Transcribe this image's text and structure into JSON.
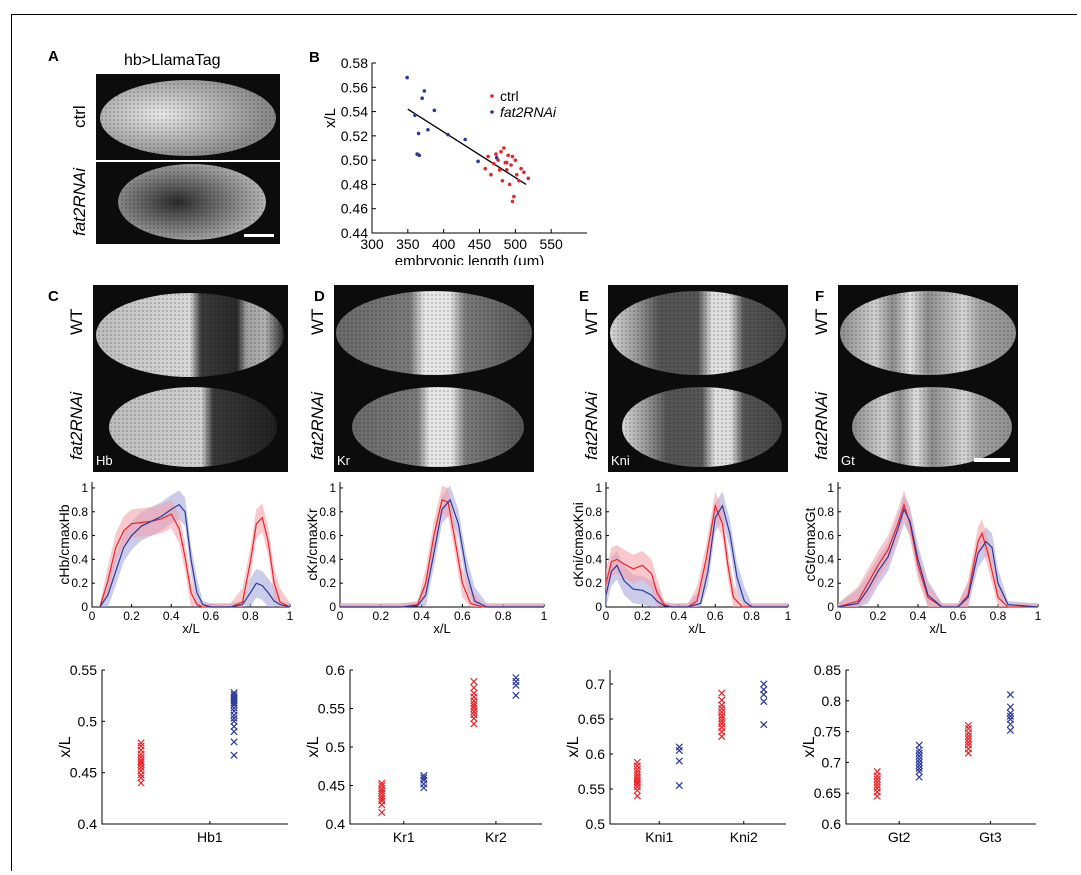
{
  "panel_letters": [
    "A",
    "B",
    "C",
    "D",
    "E",
    "F"
  ],
  "panelA": {
    "title": "hb>LlamaTag",
    "row_labels": [
      "ctrl",
      "fat2RNAi"
    ]
  },
  "image_labels": {
    "genotypes": [
      "WT",
      "fat2RNAi"
    ],
    "genes": [
      "Hb",
      "Kr",
      "Kni",
      "Gt"
    ]
  },
  "colors": {
    "ctrl": "#e8242a",
    "fat2RNAi": "#2b3a9a",
    "ctrl_band": "#f4a4ab",
    "fat2_band": "#a8a8dc"
  },
  "chart_data": [
    {
      "panel": "B",
      "type": "scatter",
      "xlabel": "embryonic length (μm)",
      "ylabel": "x/L",
      "xlim": [
        300,
        600
      ],
      "ylim": [
        0.44,
        0.58
      ],
      "xticks": [
        "300",
        "350",
        "400",
        "450",
        "500",
        "550"
      ],
      "yticks": [
        "0.44",
        "0.46",
        "0.48",
        "0.50",
        "0.52",
        "0.54",
        "0.56",
        "0.58"
      ],
      "legend": [
        "ctrl",
        "fat2RNAi"
      ],
      "legend_position": "top-right",
      "series": [
        {
          "name": "ctrl",
          "points": [
            [
              458,
              0.493
            ],
            [
              462,
              0.503
            ],
            [
              466,
              0.488
            ],
            [
              470,
              0.497
            ],
            [
              473,
              0.505
            ],
            [
              476,
              0.5
            ],
            [
              478,
              0.492
            ],
            [
              480,
              0.507
            ],
            [
              482,
              0.483
            ],
            [
              484,
              0.51
            ],
            [
              486,
              0.498
            ],
            [
              488,
              0.492
            ],
            [
              490,
              0.504
            ],
            [
              492,
              0.48
            ],
            [
              494,
              0.496
            ],
            [
              496,
              0.503
            ],
            [
              498,
              0.47
            ],
            [
              500,
              0.5
            ],
            [
              502,
              0.488
            ],
            [
              505,
              0.483
            ],
            [
              508,
              0.493
            ],
            [
              512,
              0.49
            ],
            [
              518,
              0.485
            ],
            [
              488,
              0.498
            ],
            [
              496,
              0.466
            ]
          ]
        },
        {
          "name": "fat2RNAi",
          "points": [
            [
              349,
              0.568
            ],
            [
              360,
              0.537
            ],
            [
              363,
              0.505
            ],
            [
              365,
              0.522
            ],
            [
              366,
              0.504
            ],
            [
              370,
              0.551
            ],
            [
              373,
              0.557
            ],
            [
              378,
              0.525
            ],
            [
              387,
              0.541
            ],
            [
              406,
              0.521
            ],
            [
              430,
              0.517
            ],
            [
              448,
              0.499
            ],
            [
              474,
              0.502
            ]
          ]
        }
      ],
      "fit_line": [
        [
          350,
          0.542
        ],
        [
          515,
          0.48
        ]
      ]
    },
    {
      "panel": "C",
      "type": "line",
      "xlabel": "x/L",
      "ylabel": "cHb/cmaxHb",
      "xlim": [
        0,
        1
      ],
      "ylim": [
        0,
        1.05
      ],
      "xticks": [
        "0",
        "0.2",
        "0.4",
        "0.6",
        "0.8",
        "1"
      ],
      "yticks": [
        "0",
        "0.2",
        "0.4",
        "0.6",
        "0.8",
        "1"
      ],
      "series": [
        {
          "name": "ctrl",
          "x": [
            0.04,
            0.08,
            0.12,
            0.16,
            0.2,
            0.25,
            0.3,
            0.35,
            0.4,
            0.44,
            0.47,
            0.5,
            0.53,
            0.56,
            0.6,
            0.7,
            0.76,
            0.8,
            0.83,
            0.86,
            0.89,
            0.92,
            0.95,
            1.0
          ],
          "y": [
            0,
            0.22,
            0.5,
            0.64,
            0.7,
            0.71,
            0.72,
            0.74,
            0.78,
            0.66,
            0.42,
            0.12,
            0.02,
            0,
            0,
            0,
            0.04,
            0.38,
            0.7,
            0.75,
            0.55,
            0.2,
            0.04,
            0
          ]
        },
        {
          "name": "fat2RNAi",
          "x": [
            0.04,
            0.08,
            0.12,
            0.16,
            0.2,
            0.25,
            0.3,
            0.35,
            0.4,
            0.44,
            0.47,
            0.5,
            0.53,
            0.56,
            0.6,
            0.7,
            0.76,
            0.8,
            0.83,
            0.86,
            0.89,
            0.92,
            0.95,
            1.0
          ],
          "y": [
            0,
            0.1,
            0.3,
            0.5,
            0.6,
            0.68,
            0.72,
            0.76,
            0.82,
            0.86,
            0.8,
            0.4,
            0.12,
            0.02,
            0,
            0,
            0.02,
            0.12,
            0.2,
            0.18,
            0.12,
            0.05,
            0.02,
            0
          ]
        }
      ]
    },
    {
      "panel": "D",
      "type": "line",
      "xlabel": "x/L",
      "ylabel": "cKr/cmaxKr",
      "xlim": [
        0,
        1
      ],
      "ylim": [
        0,
        1.05
      ],
      "xticks": [
        "0",
        "0.2",
        "0.4",
        "0.6",
        "0.8",
        "1"
      ],
      "yticks": [
        "0",
        "0.2",
        "0.4",
        "0.6",
        "0.8",
        "1"
      ],
      "series": [
        {
          "name": "ctrl",
          "x": [
            0,
            0.3,
            0.38,
            0.42,
            0.46,
            0.5,
            0.53,
            0.56,
            0.6,
            0.64,
            0.7,
            1.0
          ],
          "y": [
            0,
            0,
            0.02,
            0.2,
            0.6,
            0.9,
            0.88,
            0.6,
            0.2,
            0.03,
            0,
            0
          ]
        },
        {
          "name": "fat2RNAi",
          "x": [
            0,
            0.3,
            0.38,
            0.42,
            0.46,
            0.5,
            0.54,
            0.58,
            0.62,
            0.66,
            0.72,
            1.0
          ],
          "y": [
            0,
            0,
            0.01,
            0.1,
            0.45,
            0.82,
            0.9,
            0.7,
            0.3,
            0.05,
            0,
            0
          ]
        }
      ]
    },
    {
      "panel": "E",
      "type": "line",
      "xlabel": "x/L",
      "ylabel": "cKni/cmaxKni",
      "xlim": [
        0,
        1
      ],
      "ylim": [
        0,
        1.05
      ],
      "xticks": [
        "0",
        "0.2",
        "0.4",
        "0.6",
        "0.8",
        "1"
      ],
      "yticks": [
        "0",
        "0.2",
        "0.4",
        "0.6",
        "0.8",
        "1"
      ],
      "series": [
        {
          "name": "ctrl",
          "x": [
            0,
            0.03,
            0.06,
            0.1,
            0.15,
            0.2,
            0.25,
            0.28,
            0.32,
            0.36,
            0.45,
            0.5,
            0.55,
            0.6,
            0.64,
            0.67,
            0.7,
            0.75,
            0.8,
            1.0
          ],
          "y": [
            0.2,
            0.38,
            0.4,
            0.36,
            0.32,
            0.35,
            0.28,
            0.12,
            0.02,
            0,
            0,
            0.05,
            0.4,
            0.85,
            0.7,
            0.35,
            0.08,
            0,
            0,
            0
          ]
        },
        {
          "name": "fat2RNAi",
          "x": [
            0,
            0.03,
            0.06,
            0.1,
            0.15,
            0.2,
            0.25,
            0.28,
            0.32,
            0.36,
            0.45,
            0.52,
            0.56,
            0.6,
            0.64,
            0.68,
            0.72,
            0.76,
            0.8,
            1.0
          ],
          "y": [
            0.1,
            0.3,
            0.35,
            0.22,
            0.15,
            0.14,
            0.1,
            0.05,
            0.01,
            0,
            0,
            0.03,
            0.3,
            0.75,
            0.85,
            0.62,
            0.25,
            0.05,
            0,
            0
          ]
        }
      ]
    },
    {
      "panel": "F",
      "type": "line",
      "xlabel": "x/L",
      "ylabel": "cGt/cmaxGt",
      "xlim": [
        0,
        1
      ],
      "ylim": [
        0,
        1.05
      ],
      "xticks": [
        "0",
        "0.2",
        "0.4",
        "0.6",
        "0.8",
        "1"
      ],
      "yticks": [
        "0",
        "0.2",
        "0.4",
        "0.6",
        "0.8",
        "1"
      ],
      "series": [
        {
          "name": "ctrl",
          "x": [
            0,
            0.1,
            0.15,
            0.2,
            0.25,
            0.3,
            0.33,
            0.36,
            0.4,
            0.45,
            0.52,
            0.6,
            0.65,
            0.7,
            0.72,
            0.75,
            0.8,
            0.85,
            1.0
          ],
          "y": [
            0,
            0.05,
            0.2,
            0.35,
            0.48,
            0.7,
            0.86,
            0.7,
            0.35,
            0.08,
            0,
            0,
            0.1,
            0.55,
            0.62,
            0.45,
            0.08,
            0,
            0
          ]
        },
        {
          "name": "fat2RNAi",
          "x": [
            0,
            0.1,
            0.15,
            0.2,
            0.25,
            0.3,
            0.33,
            0.36,
            0.4,
            0.45,
            0.52,
            0.6,
            0.65,
            0.7,
            0.74,
            0.77,
            0.8,
            0.85,
            1.0
          ],
          "y": [
            0,
            0.03,
            0.15,
            0.3,
            0.42,
            0.66,
            0.82,
            0.72,
            0.4,
            0.1,
            0,
            0,
            0.08,
            0.45,
            0.55,
            0.5,
            0.2,
            0.02,
            0
          ]
        }
      ]
    },
    {
      "panel": "C",
      "type": "scatter",
      "ylabel": "x/L",
      "ylim": [
        0.4,
        0.55
      ],
      "yticks": [
        "0.4",
        "0.45",
        "0.5",
        "0.55"
      ],
      "categories": [
        "Hb1"
      ],
      "series": [
        {
          "name": "ctrl",
          "category": "Hb1",
          "values": [
            0.44,
            0.445,
            0.448,
            0.452,
            0.455,
            0.458,
            0.46,
            0.462,
            0.465,
            0.468,
            0.472,
            0.476,
            0.479
          ]
        },
        {
          "name": "fat2RNAi",
          "category": "Hb1",
          "values": [
            0.467,
            0.48,
            0.49,
            0.495,
            0.5,
            0.503,
            0.506,
            0.51,
            0.513,
            0.516,
            0.518,
            0.52,
            0.522,
            0.524,
            0.526,
            0.528
          ]
        }
      ]
    },
    {
      "panel": "D",
      "type": "scatter",
      "ylabel": "x/L",
      "ylim": [
        0.4,
        0.6
      ],
      "yticks": [
        "0.4",
        "0.45",
        "0.5",
        "0.55",
        "0.6"
      ],
      "categories": [
        "Kr1",
        "Kr2"
      ],
      "series": [
        {
          "name": "ctrl",
          "category": "Kr1",
          "values": [
            0.415,
            0.425,
            0.43,
            0.433,
            0.436,
            0.44,
            0.443,
            0.446,
            0.45,
            0.453
          ]
        },
        {
          "name": "fat2RNAi",
          "category": "Kr1",
          "values": [
            0.447,
            0.452,
            0.457,
            0.46,
            0.463
          ]
        },
        {
          "name": "ctrl",
          "category": "Kr2",
          "values": [
            0.53,
            0.537,
            0.542,
            0.546,
            0.55,
            0.553,
            0.556,
            0.56,
            0.565,
            0.57,
            0.577,
            0.585
          ]
        },
        {
          "name": "fat2RNAi",
          "category": "Kr2",
          "values": [
            0.567,
            0.58,
            0.585,
            0.59
          ]
        }
      ]
    },
    {
      "panel": "E",
      "type": "scatter",
      "ylabel": "x/L",
      "ylim": [
        0.5,
        0.72
      ],
      "yticks": [
        "0.5",
        "0.55",
        "0.6",
        "0.65",
        "0.7"
      ],
      "categories": [
        "Kni1",
        "Kni2"
      ],
      "series": [
        {
          "name": "ctrl",
          "category": "Kni1",
          "values": [
            0.54,
            0.548,
            0.553,
            0.557,
            0.56,
            0.563,
            0.566,
            0.57,
            0.574,
            0.578,
            0.583,
            0.588
          ]
        },
        {
          "name": "fat2RNAi",
          "category": "Kni1",
          "values": [
            0.555,
            0.59,
            0.605,
            0.61
          ]
        },
        {
          "name": "ctrl",
          "category": "Kni2",
          "values": [
            0.625,
            0.632,
            0.638,
            0.643,
            0.647,
            0.651,
            0.655,
            0.66,
            0.665,
            0.67,
            0.677,
            0.687
          ]
        },
        {
          "name": "fat2RNAi",
          "category": "Kni2",
          "values": [
            0.642,
            0.675,
            0.685,
            0.692,
            0.7
          ]
        }
      ]
    },
    {
      "panel": "F",
      "type": "scatter",
      "ylabel": "x/L",
      "ylim": [
        0.6,
        0.85
      ],
      "yticks": [
        "0.6",
        "0.65",
        "0.7",
        "0.75",
        "0.8",
        "0.85"
      ],
      "categories": [
        "Gt2",
        "Gt3"
      ],
      "series": [
        {
          "name": "ctrl",
          "category": "Gt2",
          "values": [
            0.645,
            0.652,
            0.658,
            0.663,
            0.668,
            0.673,
            0.678,
            0.685
          ]
        },
        {
          "name": "fat2RNAi",
          "category": "Gt2",
          "values": [
            0.676,
            0.685,
            0.69,
            0.695,
            0.7,
            0.705,
            0.71,
            0.715,
            0.72,
            0.728
          ]
        },
        {
          "name": "ctrl",
          "category": "Gt3",
          "values": [
            0.715,
            0.722,
            0.728,
            0.733,
            0.738,
            0.743,
            0.748,
            0.755,
            0.76
          ]
        },
        {
          "name": "fat2RNAi",
          "category": "Gt3",
          "values": [
            0.752,
            0.762,
            0.77,
            0.775,
            0.78,
            0.79,
            0.81
          ]
        }
      ]
    }
  ]
}
